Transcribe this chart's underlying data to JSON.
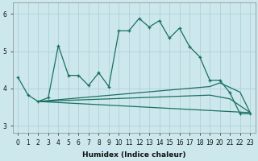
{
  "xlabel": "Humidex (Indice chaleur)",
  "bg_color": "#cce8ec",
  "grid_color": "#b0d0d8",
  "line_color": "#1a7060",
  "xlim": [
    -0.5,
    23.5
  ],
  "ylim": [
    2.8,
    6.3
  ],
  "yticks": [
    3,
    4,
    5,
    6
  ],
  "xticks": [
    0,
    1,
    2,
    3,
    4,
    5,
    6,
    7,
    8,
    9,
    10,
    11,
    12,
    13,
    14,
    15,
    16,
    17,
    18,
    19,
    20,
    21,
    22,
    23
  ],
  "main_x": [
    0,
    1,
    2,
    3,
    4,
    5,
    6,
    7,
    8,
    9,
    10,
    11,
    12,
    13,
    14,
    15,
    16,
    17,
    18,
    19,
    20,
    21,
    22,
    23
  ],
  "main_y": [
    4.3,
    3.82,
    3.65,
    3.75,
    5.15,
    4.35,
    4.35,
    4.08,
    4.42,
    4.05,
    5.55,
    5.55,
    5.88,
    5.65,
    5.82,
    5.35,
    5.62,
    5.12,
    4.85,
    4.22,
    4.22,
    3.88,
    3.32,
    3.32
  ],
  "fan_line1_x": [
    2,
    23
  ],
  "fan_line1_y": [
    3.65,
    3.35
  ],
  "fan_line2_x": [
    2,
    19,
    21,
    23
  ],
  "fan_line2_y": [
    3.65,
    3.82,
    3.72,
    3.35
  ],
  "fan_line3_x": [
    2,
    19,
    20,
    22,
    23
  ],
  "fan_line3_y": [
    3.65,
    4.05,
    4.15,
    3.9,
    3.35
  ]
}
